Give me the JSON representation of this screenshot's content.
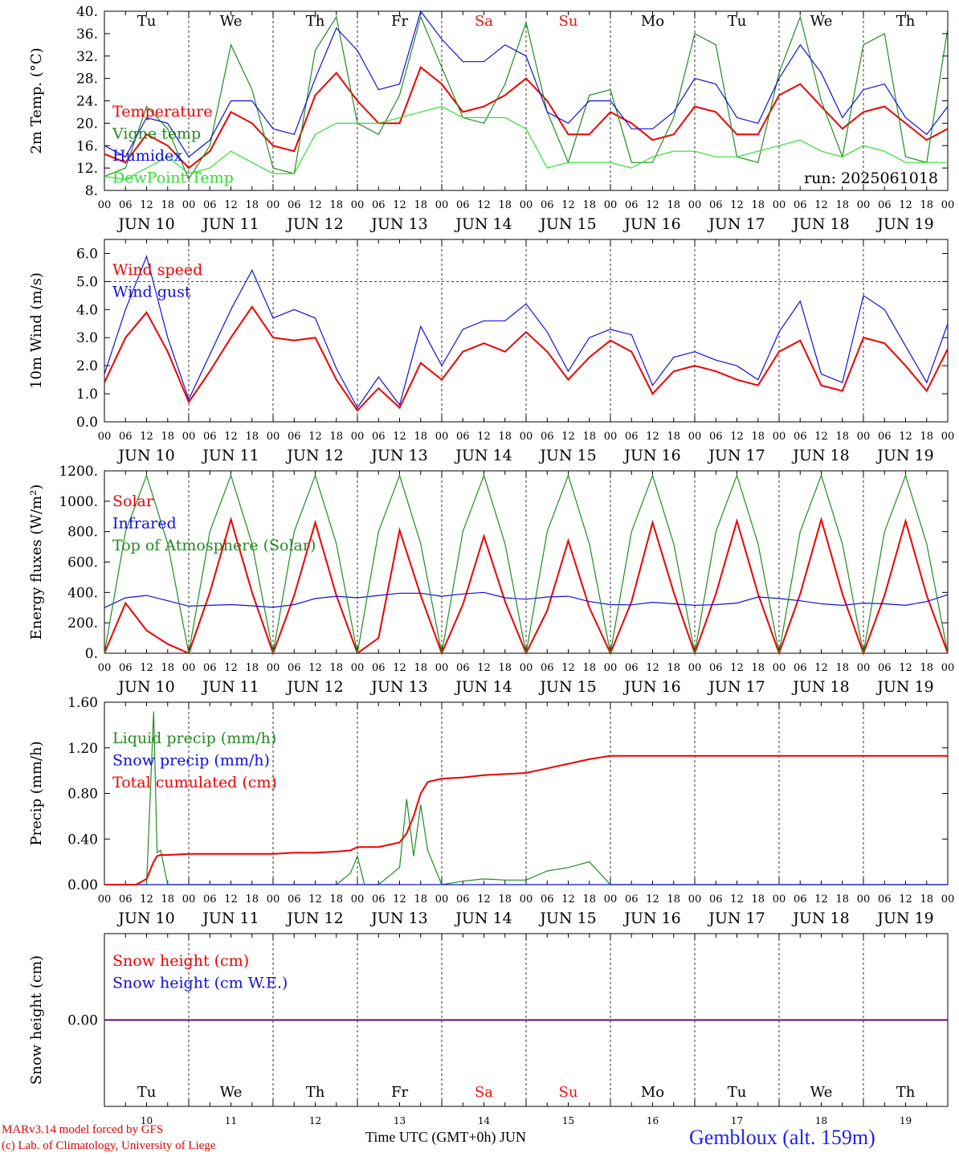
{
  "run_label": "run: 2025061018",
  "footer": {
    "credit_line1": "MARv3.14 model forced by GFS",
    "credit_line2": "(c) Lab. of Climatology, University of Liege",
    "xlabel": "Time UTC (GMT+0h) JUN",
    "station": "Gembloux (alt. 159m)"
  },
  "colors": {
    "red": "#ee0000",
    "green": "#228B22",
    "blue": "#1010dd",
    "lightgreen": "#33dd33",
    "weekend": "#ee1111"
  },
  "axis": {
    "hour_ticks": [
      "00",
      "06",
      "12",
      "18"
    ],
    "days": [
      {
        "date": "JUN 10",
        "day": "Tu",
        "num": "10",
        "weekend": false
      },
      {
        "date": "JUN 11",
        "day": "We",
        "num": "11",
        "weekend": false
      },
      {
        "date": "JUN 12",
        "day": "Th",
        "num": "12",
        "weekend": false
      },
      {
        "date": "JUN 13",
        "day": "Fr",
        "num": "13",
        "weekend": false
      },
      {
        "date": "JUN 14",
        "day": "Sa",
        "num": "14",
        "weekend": true
      },
      {
        "date": "JUN 15",
        "day": "Su",
        "num": "15",
        "weekend": true
      },
      {
        "date": "JUN 16",
        "day": "Mo",
        "num": "16",
        "weekend": false
      },
      {
        "date": "JUN 17",
        "day": "Tu",
        "num": "17",
        "weekend": false
      },
      {
        "date": "JUN 18",
        "day": "We",
        "num": "18",
        "weekend": false
      },
      {
        "date": "JUN 19",
        "day": "Th",
        "num": "19",
        "weekend": false
      }
    ],
    "final_tick": "00"
  },
  "chart_data": [
    {
      "type": "line",
      "ylabel": "2m Temp. (°C)",
      "ylim": [
        8,
        40
      ],
      "yticks": [
        "8.",
        "12.",
        "16.",
        "20.",
        "24.",
        "28.",
        "32.",
        "36.",
        "40."
      ],
      "show_day_names": true,
      "x": [
        0,
        6,
        12,
        18,
        24,
        30,
        36,
        42,
        48,
        54,
        60,
        66,
        72,
        78,
        84,
        90,
        96,
        102,
        108,
        114,
        120,
        126,
        132,
        138,
        144,
        150,
        156,
        162,
        168,
        174,
        180,
        186,
        192,
        198,
        204,
        210,
        216,
        222,
        228,
        234,
        240
      ],
      "series": [
        {
          "name": "Temperature",
          "color": "red",
          "values": [
            14.5,
            13,
            18,
            16,
            12,
            15,
            22,
            20,
            16,
            15,
            25,
            29,
            24,
            20,
            20,
            30,
            27,
            22,
            23,
            25,
            28,
            24,
            18,
            18,
            22,
            20,
            17,
            18,
            23,
            22,
            18,
            18,
            25,
            27,
            23,
            19,
            22,
            23,
            20,
            17,
            19
          ]
        },
        {
          "name": "Vigne temp",
          "color": "green",
          "values": [
            10.5,
            12,
            23,
            19,
            10,
            16,
            34,
            26,
            12,
            11,
            33,
            39,
            20,
            18,
            25,
            39,
            30,
            21,
            20,
            27,
            38,
            22,
            13,
            25,
            26,
            13,
            13,
            21,
            36,
            34,
            14,
            13,
            29,
            39,
            24,
            14,
            34,
            36,
            14,
            13,
            37
          ]
        },
        {
          "name": "Humidex",
          "color": "blue",
          "values": [
            16,
            14,
            21,
            20,
            14,
            17,
            24,
            24,
            19,
            18,
            28,
            37,
            33,
            26,
            27,
            40,
            35,
            31,
            31,
            34,
            32,
            22,
            20,
            24,
            24,
            19,
            19,
            22,
            28,
            27,
            21,
            20,
            28,
            34,
            29,
            21,
            26,
            27,
            21,
            18,
            23
          ]
        },
        {
          "name": "DewPoint Temp",
          "color": "lightgreen",
          "values": [
            10.5,
            10,
            12,
            14,
            11,
            12,
            15,
            13,
            11,
            11,
            18,
            20,
            20,
            20,
            21,
            22,
            23,
            21,
            21,
            21,
            19,
            12,
            13,
            13,
            13,
            12,
            14,
            15,
            15,
            14,
            14,
            15,
            16,
            17,
            15,
            14,
            16,
            15,
            13,
            13,
            13
          ]
        }
      ]
    },
    {
      "type": "line",
      "ylabel": "10m Wind (m/s)",
      "ylim": [
        0,
        6.5
      ],
      "yticks": [
        "0.0",
        "1.0",
        "2.0",
        "3.0",
        "4.0",
        "5.0",
        "6.0"
      ],
      "dashed_y": 5.0,
      "x": [
        0,
        6,
        12,
        18,
        24,
        30,
        36,
        42,
        48,
        54,
        60,
        66,
        72,
        78,
        84,
        90,
        96,
        102,
        108,
        114,
        120,
        126,
        132,
        138,
        144,
        150,
        156,
        162,
        168,
        174,
        180,
        186,
        192,
        198,
        204,
        210,
        216,
        222,
        228,
        234,
        240
      ],
      "series": [
        {
          "name": "Wind speed",
          "color": "red",
          "values": [
            1.4,
            3.0,
            3.9,
            2.5,
            0.7,
            1.8,
            3.0,
            4.1,
            3.0,
            2.9,
            3.0,
            1.5,
            0.4,
            1.2,
            0.5,
            2.1,
            1.5,
            2.5,
            2.8,
            2.5,
            3.2,
            2.5,
            1.5,
            2.3,
            2.9,
            2.5,
            1.0,
            1.8,
            2.0,
            1.8,
            1.5,
            1.3,
            2.5,
            2.9,
            1.3,
            1.1,
            3.0,
            2.8,
            2.0,
            1.1,
            2.6
          ]
        },
        {
          "name": "Wind gust",
          "color": "blue",
          "values": [
            1.7,
            4.0,
            5.9,
            3.0,
            0.8,
            2.4,
            4.0,
            5.4,
            3.7,
            4.0,
            3.7,
            1.9,
            0.5,
            1.6,
            0.6,
            3.4,
            2.0,
            3.3,
            3.6,
            3.6,
            4.2,
            3.2,
            1.8,
            3.0,
            3.3,
            3.1,
            1.3,
            2.3,
            2.5,
            2.2,
            2.0,
            1.5,
            3.2,
            4.3,
            1.7,
            1.4,
            4.5,
            4.0,
            2.7,
            1.4,
            3.5
          ]
        }
      ]
    },
    {
      "type": "line",
      "ylabel": "Energy fluxes (W/m²)",
      "ylim": [
        0,
        1200
      ],
      "yticks": [
        "0.",
        "200.",
        "400.",
        "600.",
        "800.",
        "1000.",
        "1200."
      ],
      "x": [
        0,
        6,
        12,
        18,
        24,
        30,
        36,
        42,
        48,
        54,
        60,
        66,
        72,
        78,
        84,
        90,
        96,
        102,
        108,
        114,
        120,
        126,
        132,
        138,
        144,
        150,
        156,
        162,
        168,
        174,
        180,
        186,
        192,
        198,
        204,
        210,
        216,
        222,
        228,
        234,
        240
      ],
      "series": [
        {
          "name": "Solar",
          "color": "red",
          "values": [
            0,
            330,
            150,
            60,
            0,
            400,
            880,
            400,
            0,
            380,
            860,
            380,
            0,
            100,
            810,
            380,
            0,
            320,
            770,
            340,
            0,
            280,
            740,
            300,
            0,
            340,
            860,
            400,
            0,
            390,
            870,
            390,
            0,
            390,
            880,
            390,
            0,
            380,
            870,
            380,
            0
          ]
        },
        {
          "name": "Infrared",
          "color": "blue",
          "values": [
            300,
            365,
            380,
            345,
            310,
            315,
            320,
            312,
            302,
            320,
            360,
            375,
            365,
            380,
            395,
            395,
            375,
            390,
            400,
            365,
            355,
            370,
            375,
            340,
            320,
            318,
            335,
            325,
            315,
            320,
            330,
            370,
            360,
            345,
            325,
            315,
            330,
            325,
            315,
            340,
            385
          ]
        },
        {
          "name": "Top of Atmosphere (Solar)",
          "color": "green",
          "values": [
            0,
            800,
            1170,
            720,
            0,
            800,
            1170,
            720,
            0,
            800,
            1170,
            720,
            0,
            800,
            1170,
            720,
            0,
            800,
            1170,
            720,
            0,
            800,
            1170,
            720,
            0,
            800,
            1170,
            720,
            0,
            800,
            1170,
            720,
            0,
            800,
            1170,
            720,
            0,
            800,
            1170,
            720,
            0
          ]
        }
      ]
    },
    {
      "type": "line",
      "ylabel": "Precip (mm/h)",
      "ylim": [
        0,
        1.6
      ],
      "yticks": [
        "0.00",
        "0.40",
        "0.80",
        "1.20",
        "1.60"
      ],
      "x": [
        0,
        6,
        9,
        12,
        14,
        15,
        16,
        18,
        24,
        30,
        36,
        42,
        48,
        54,
        60,
        66,
        70,
        72,
        74,
        78,
        84,
        86,
        88,
        90,
        92,
        96,
        102,
        108,
        114,
        120,
        126,
        132,
        138,
        144,
        150,
        156,
        162,
        168,
        174,
        180,
        186,
        192,
        198,
        204,
        210,
        216,
        222,
        228,
        234,
        240
      ],
      "series": [
        {
          "name": "Liquid precip (mm/h)",
          "color": "green",
          "values": [
            0,
            0,
            0,
            0,
            1.52,
            0.28,
            0.3,
            0,
            0,
            0,
            0,
            0,
            0,
            0,
            0,
            0,
            0.1,
            0.25,
            0,
            0,
            0.15,
            0.75,
            0.25,
            0.7,
            0.3,
            0,
            0.03,
            0.05,
            0.04,
            0.04,
            0.12,
            0.15,
            0.2,
            0,
            0,
            0,
            0,
            0,
            0,
            0,
            0,
            0,
            0,
            0,
            0,
            0,
            0,
            0,
            0,
            0
          ]
        },
        {
          "name": "Snow precip (mm/h)",
          "color": "blue",
          "values": [
            0,
            0,
            0,
            0,
            0,
            0,
            0,
            0,
            0,
            0,
            0,
            0,
            0,
            0,
            0,
            0,
            0,
            0,
            0,
            0,
            0,
            0,
            0,
            0,
            0,
            0,
            0,
            0,
            0,
            0,
            0,
            0,
            0,
            0,
            0,
            0,
            0,
            0,
            0,
            0,
            0,
            0,
            0,
            0,
            0,
            0,
            0,
            0,
            0,
            0
          ]
        },
        {
          "name": "Total cumulated (cm)",
          "color": "red",
          "values": [
            0,
            0,
            0,
            0.05,
            0.2,
            0.25,
            0.26,
            0.26,
            0.27,
            0.27,
            0.27,
            0.27,
            0.27,
            0.28,
            0.28,
            0.29,
            0.3,
            0.33,
            0.33,
            0.33,
            0.37,
            0.45,
            0.6,
            0.8,
            0.9,
            0.93,
            0.94,
            0.96,
            0.97,
            0.98,
            1.02,
            1.06,
            1.1,
            1.13,
            1.13,
            1.13,
            1.13,
            1.13,
            1.13,
            1.13,
            1.13,
            1.13,
            1.13,
            1.13,
            1.13,
            1.13,
            1.13,
            1.13,
            1.13,
            1.13
          ]
        }
      ]
    },
    {
      "type": "line",
      "ylabel": "Snow height (cm)",
      "ylim": [
        -1,
        1
      ],
      "yticks": [
        "0.00"
      ],
      "bottom_labels": true,
      "x": [
        0,
        240
      ],
      "series": [
        {
          "name": "Snow height (cm)",
          "color": "red",
          "values": [
            0,
            0
          ]
        },
        {
          "name": "Snow height (cm W.E.)",
          "color": "blue",
          "values": [
            0,
            0
          ]
        }
      ]
    }
  ]
}
